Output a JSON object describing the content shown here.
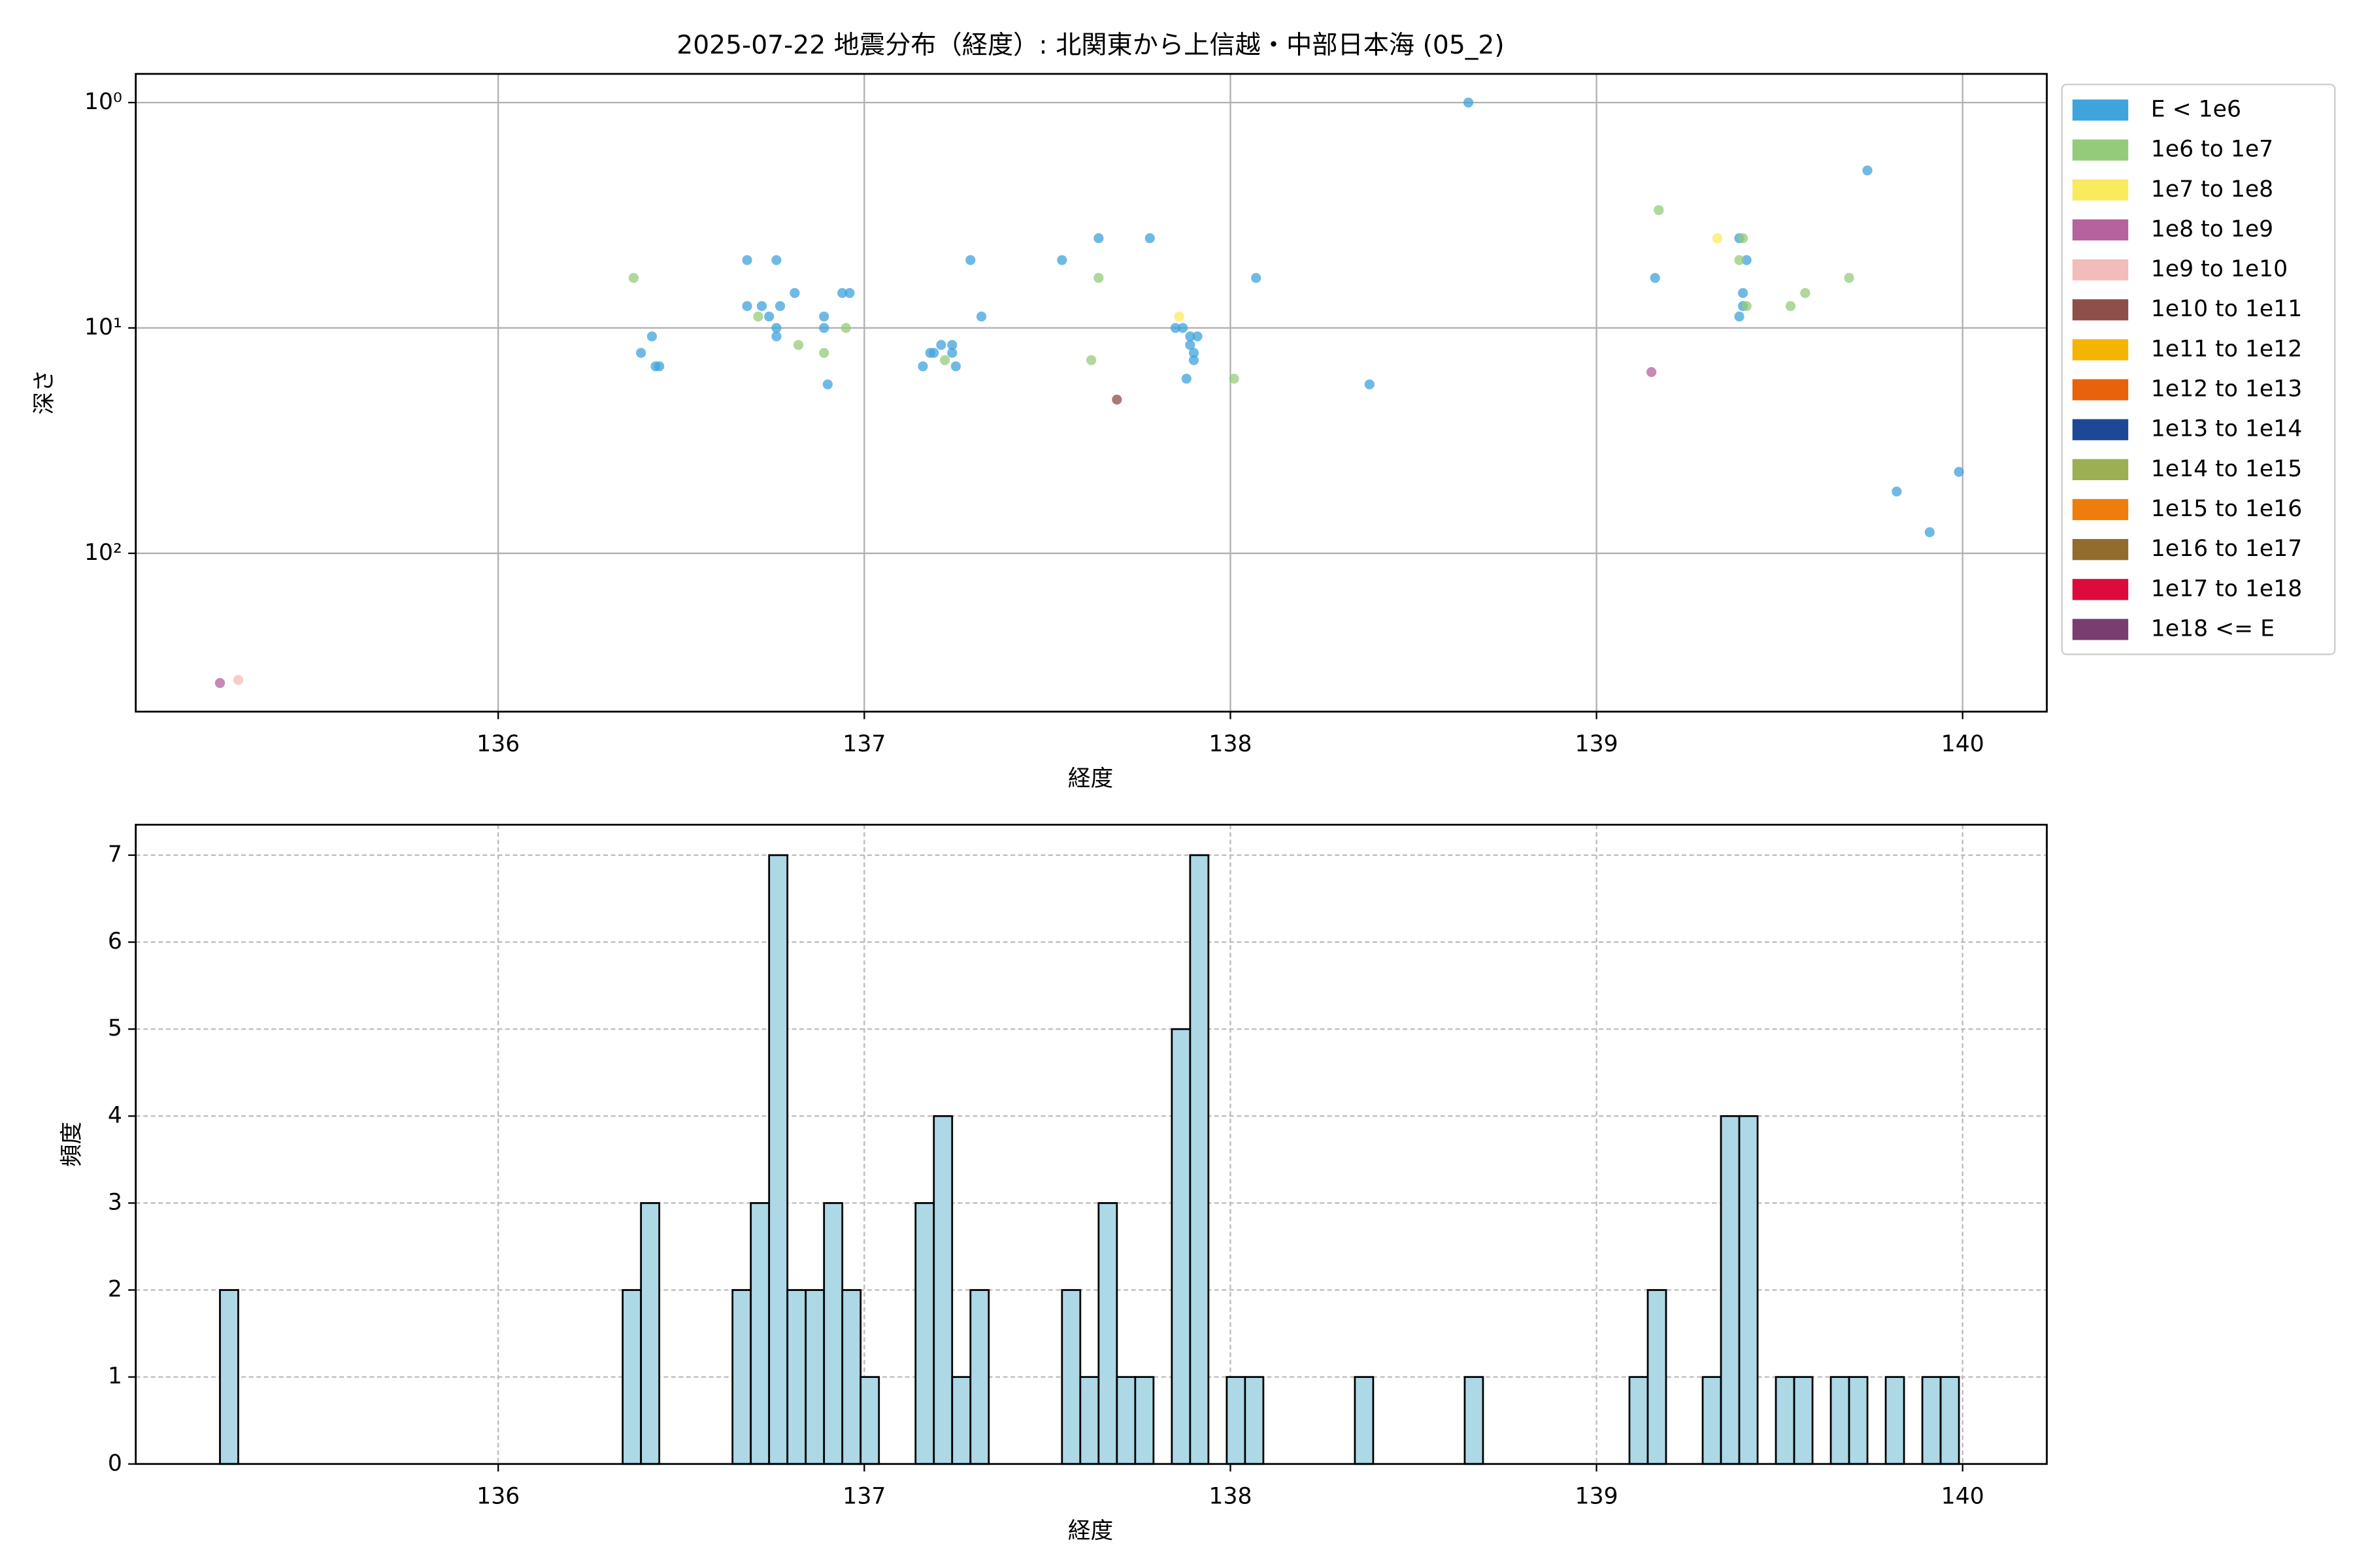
{
  "chart_data": [
    {
      "type": "scatter",
      "title": "2025-07-22 地震分布（経度）: 北関東から上信越・中部日本海 (05_2)",
      "xlabel": "経度",
      "ylabel": "深さ",
      "xlim": [
        135.01,
        140.23
      ],
      "xticks": [
        136,
        137,
        138,
        139,
        140
      ],
      "ylim": [
        0.746,
        504
      ],
      "yscale": "log",
      "y_inverted": true,
      "yticks": [
        {
          "value": 1,
          "label": "10⁰"
        },
        {
          "value": 10,
          "label": "10¹"
        },
        {
          "value": 100,
          "label": "10²"
        }
      ],
      "grid": true,
      "legend": "outside-right",
      "series": [
        {
          "name": "E < 1e6",
          "color": "#3fa3dc",
          "x": [
            138.65,
            139.74,
            136.68,
            136.76,
            137.29,
            137.54,
            137.64,
            137.78,
            139.39,
            139.41,
            138.07,
            139.16,
            136.68,
            136.81,
            136.77,
            136.72,
            136.74,
            136.76,
            136.76,
            136.89,
            136.89,
            136.94,
            136.96,
            137.32,
            139.4,
            139.4,
            139.39,
            136.42,
            136.39,
            136.43,
            136.44,
            137.16,
            137.18,
            137.19,
            137.21,
            137.24,
            137.24,
            137.25,
            136.9,
            137.85,
            137.87,
            137.89,
            137.91,
            137.89,
            137.9,
            137.9,
            137.88,
            138.38,
            139.82,
            139.91,
            139.99
          ],
          "values": [
            1,
            2,
            5,
            5,
            5,
            5,
            4,
            4,
            4,
            5,
            6,
            6,
            8,
            7,
            8,
            8,
            8.9,
            10,
            10.9,
            8.9,
            10,
            7,
            7,
            8.9,
            7,
            8,
            8.9,
            10.9,
            12.9,
            14.8,
            14.8,
            14.8,
            12.9,
            12.9,
            11.9,
            11.9,
            12.9,
            14.8,
            17.8,
            10,
            10,
            10.9,
            10.9,
            11.9,
            12.9,
            13.9,
            16.8,
            17.8,
            53.2,
            80.6,
            43.5
          ]
        },
        {
          "name": "1e6 to 1e7",
          "color": "#94cb78",
          "x": [
            136.37,
            136.71,
            136.82,
            136.89,
            136.95,
            137.22,
            137.62,
            137.64,
            138.01,
            139.17,
            139.4,
            139.39,
            139.41,
            139.53,
            139.57,
            139.69
          ],
          "values": [
            6,
            8.9,
            11.9,
            12.9,
            10,
            13.9,
            13.9,
            6,
            16.8,
            3,
            4,
            5,
            8,
            8,
            7,
            6
          ]
        },
        {
          "name": "1e7 to 1e8",
          "color": "#f9ea5e",
          "x": [
            139.33,
            137.86
          ],
          "values": [
            4,
            8.9
          ]
        },
        {
          "name": "1e8 to 1e9",
          "color": "#b5629f",
          "x": [
            139.15,
            135.24
          ],
          "values": [
            15.7,
            376
          ]
        },
        {
          "name": "1e9 to 1e10",
          "color": "#f2bcb9",
          "x": [
            135.29
          ],
          "values": [
            365
          ]
        },
        {
          "name": "1e10 to 1e11",
          "color": "#8e4e4a",
          "x": [
            137.69
          ],
          "values": [
            20.8
          ]
        },
        {
          "name": "1e11 to 1e12",
          "color": "#f5b400",
          "x": [],
          "values": []
        },
        {
          "name": "1e12 to 1e13",
          "color": "#e8620b",
          "x": [],
          "values": []
        },
        {
          "name": "1e13 to 1e14",
          "color": "#1d4896",
          "x": [],
          "values": []
        },
        {
          "name": "1e14 to 1e15",
          "color": "#9caf52",
          "x": [],
          "values": []
        },
        {
          "name": "1e15 to 1e16",
          "color": "#ef7d0b",
          "x": [],
          "values": []
        },
        {
          "name": "1e16 to 1e17",
          "color": "#926c2c",
          "x": [],
          "values": []
        },
        {
          "name": "1e17 to 1e18",
          "color": "#db0b3c",
          "x": [],
          "values": []
        },
        {
          "name": "1e18 <= E",
          "color": "#7a3d70",
          "x": [],
          "values": []
        }
      ]
    },
    {
      "type": "histogram",
      "xlabel": "経度",
      "ylabel": "頻度",
      "xlim": [
        135.01,
        140.23
      ],
      "xticks": [
        136,
        137,
        138,
        139,
        140
      ],
      "ylim": [
        0,
        7.35
      ],
      "yticks": [
        0,
        1,
        2,
        3,
        4,
        5,
        6,
        7
      ],
      "grid": true,
      "grid_style": "dashed",
      "color": "#add8e6",
      "edgecolor": "#000000",
      "bins": [
        135.24,
        135.29,
        135.34,
        135.39,
        135.44,
        135.49,
        135.54,
        135.59,
        135.64,
        135.69,
        135.74,
        135.79,
        135.84,
        135.89,
        135.94,
        135.99,
        136.04,
        136.09,
        136.14,
        136.19,
        136.24,
        136.29,
        136.34,
        136.39,
        136.44,
        136.49,
        136.54,
        136.59,
        136.64,
        136.69,
        136.74,
        136.79,
        136.84,
        136.89,
        136.94,
        136.99,
        137.04,
        137.09,
        137.14,
        137.19,
        137.24,
        137.29,
        137.34,
        137.39,
        137.44,
        137.49,
        137.54,
        137.59,
        137.64,
        137.69,
        137.74,
        137.79,
        137.84,
        137.89,
        137.94,
        137.99,
        138.04,
        138.09,
        138.14,
        138.19,
        138.24,
        138.29,
        138.34,
        138.39,
        138.44,
        138.49,
        138.54,
        138.59,
        138.64,
        138.69,
        138.74,
        138.79,
        138.84,
        138.89,
        138.94,
        138.99,
        139.04,
        139.09,
        139.14,
        139.19,
        139.24,
        139.29,
        139.34,
        139.39,
        139.44,
        139.49,
        139.54,
        139.59,
        139.64,
        139.69,
        139.74,
        139.79,
        139.84,
        139.89,
        139.94,
        139.99
      ],
      "values": [
        2,
        0,
        0,
        0,
        0,
        0,
        0,
        0,
        0,
        0,
        0,
        0,
        0,
        0,
        0,
        0,
        0,
        0,
        0,
        0,
        0,
        0,
        2,
        3,
        0,
        0,
        0,
        0,
        2,
        3,
        7,
        2,
        2,
        3,
        2,
        1,
        0,
        0,
        3,
        4,
        1,
        2,
        0,
        0,
        0,
        0,
        2,
        1,
        3,
        1,
        1,
        0,
        5,
        7,
        0,
        1,
        1,
        0,
        0,
        0,
        0,
        0,
        1,
        0,
        0,
        0,
        0,
        0,
        1,
        0,
        0,
        0,
        0,
        0,
        0,
        0,
        0,
        1,
        2,
        0,
        0,
        1,
        4,
        4,
        0,
        1,
        1,
        0,
        1,
        1,
        0,
        1,
        0,
        1,
        1
      ]
    }
  ]
}
